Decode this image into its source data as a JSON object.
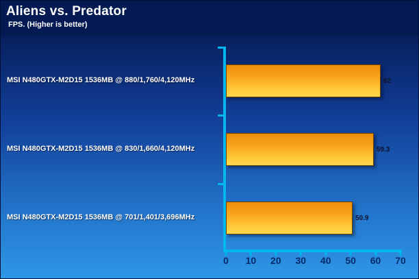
{
  "header": {
    "title": "Aliens vs. Predator",
    "subtitle": "FPS. (Higher is better)"
  },
  "chart_data": {
    "type": "bar",
    "orientation": "horizontal",
    "title": "Aliens vs. Predator",
    "subtitle": "FPS. (Higher is better)",
    "categories": [
      "MSI N480GTX-M2D15 1536MB @ 880/1,760/4,120MHz",
      "MSI N480GTX-M2D15 1536MB @ 830/1,660/4,120MHz",
      "MSI N480GTX-M2D15 1536MB @ 701/1,401/3,696MHz"
    ],
    "values": [
      62,
      59.3,
      50.9
    ],
    "value_labels": [
      "62",
      "59.3",
      "50.9"
    ],
    "xlabel": "",
    "ylabel": "",
    "xlim": [
      0,
      70
    ],
    "xticks": [
      0,
      10,
      20,
      30,
      40,
      50,
      60,
      70
    ],
    "grid": false,
    "legend": false,
    "colors": {
      "bar_gradient_top": "#ee8d06",
      "bar_gradient_bottom": "#ffd94f",
      "axis": "#00b6ee",
      "background_top": "#07205e",
      "background_bottom": "#2f97e6",
      "header_background": "#041a52",
      "tick_text": "#062a6b",
      "category_text": "#ffffff",
      "value_text": "#10102e"
    }
  }
}
